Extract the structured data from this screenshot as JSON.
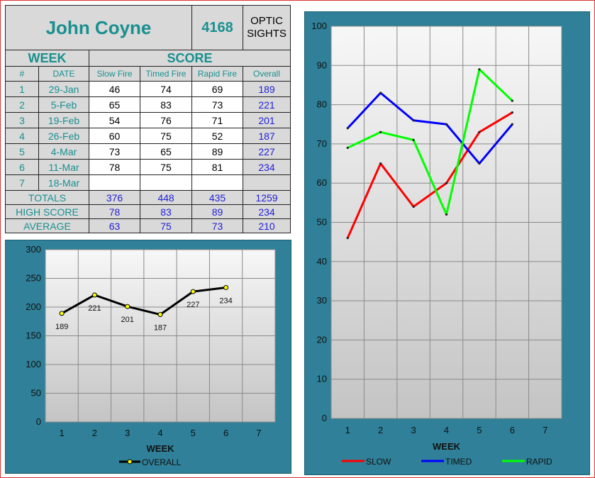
{
  "header": {
    "name": "John Coyne",
    "id": "4168",
    "category": [
      "OPTIC",
      "SIGHTS"
    ]
  },
  "table": {
    "week_label": "WEEK",
    "score_label": "SCORE",
    "columns": [
      "#",
      "DATE",
      "Slow Fire",
      "Timed Fire",
      "Rapid Fire",
      "Overall"
    ],
    "rows": [
      {
        "n": "1",
        "date": "29-Jan",
        "slow": "46",
        "timed": "74",
        "rapid": "69",
        "overall": "189"
      },
      {
        "n": "2",
        "date": "5-Feb",
        "slow": "65",
        "timed": "83",
        "rapid": "73",
        "overall": "221"
      },
      {
        "n": "3",
        "date": "19-Feb",
        "slow": "54",
        "timed": "76",
        "rapid": "71",
        "overall": "201"
      },
      {
        "n": "4",
        "date": "26-Feb",
        "slow": "60",
        "timed": "75",
        "rapid": "52",
        "overall": "187"
      },
      {
        "n": "5",
        "date": "4-Mar",
        "slow": "73",
        "timed": "65",
        "rapid": "89",
        "overall": "227"
      },
      {
        "n": "6",
        "date": "11-Mar",
        "slow": "78",
        "timed": "75",
        "rapid": "81",
        "overall": "234"
      },
      {
        "n": "7",
        "date": "18-Mar",
        "slow": "",
        "timed": "",
        "rapid": "",
        "overall": ""
      }
    ],
    "totals": {
      "label": "TOTALS",
      "slow": "376",
      "timed": "448",
      "rapid": "435",
      "overall": "1259"
    },
    "high": {
      "label": "HIGH SCORE",
      "slow": "78",
      "timed": "83",
      "rapid": "89",
      "overall": "234"
    },
    "average": {
      "label": "AVERAGE",
      "slow": "63",
      "timed": "75",
      "rapid": "73",
      "overall": "210"
    }
  },
  "colors": {
    "teal": "#1a8f8f",
    "blue": "#1f1fd6",
    "panel": "#2f8098",
    "slow": "#ff0000",
    "timed": "#0000ff",
    "rapid": "#00ff00",
    "overall": "#000000",
    "marker": "#ffff00"
  },
  "chart_data": [
    {
      "type": "line",
      "x": [
        1,
        2,
        3,
        4,
        5,
        6,
        7
      ],
      "xlabel": "WEEK",
      "ylim": [
        0,
        300
      ],
      "yticks": [
        0,
        50,
        100,
        150,
        200,
        250,
        300
      ],
      "grid": true,
      "legend": "bottom",
      "series": [
        {
          "name": "OVERALL",
          "x": [
            1,
            2,
            3,
            4,
            5,
            6
          ],
          "values": [
            189,
            221,
            201,
            187,
            227,
            234
          ]
        }
      ]
    },
    {
      "type": "line",
      "x": [
        1,
        2,
        3,
        4,
        5,
        6,
        7
      ],
      "xlabel": "WEEK",
      "ylim": [
        0,
        100
      ],
      "yticks": [
        0,
        10,
        20,
        30,
        40,
        50,
        60,
        70,
        80,
        90,
        100
      ],
      "grid": true,
      "legend": "bottom",
      "series": [
        {
          "name": "SLOW",
          "x": [
            1,
            2,
            3,
            4,
            5,
            6
          ],
          "values": [
            46,
            65,
            54,
            60,
            73,
            78
          ]
        },
        {
          "name": "TIMED",
          "x": [
            1,
            2,
            3,
            4,
            5,
            6
          ],
          "values": [
            74,
            83,
            76,
            75,
            65,
            75
          ]
        },
        {
          "name": "RAPID",
          "x": [
            1,
            2,
            3,
            4,
            5,
            6
          ],
          "values": [
            69,
            73,
            71,
            52,
            89,
            81
          ]
        }
      ]
    }
  ]
}
